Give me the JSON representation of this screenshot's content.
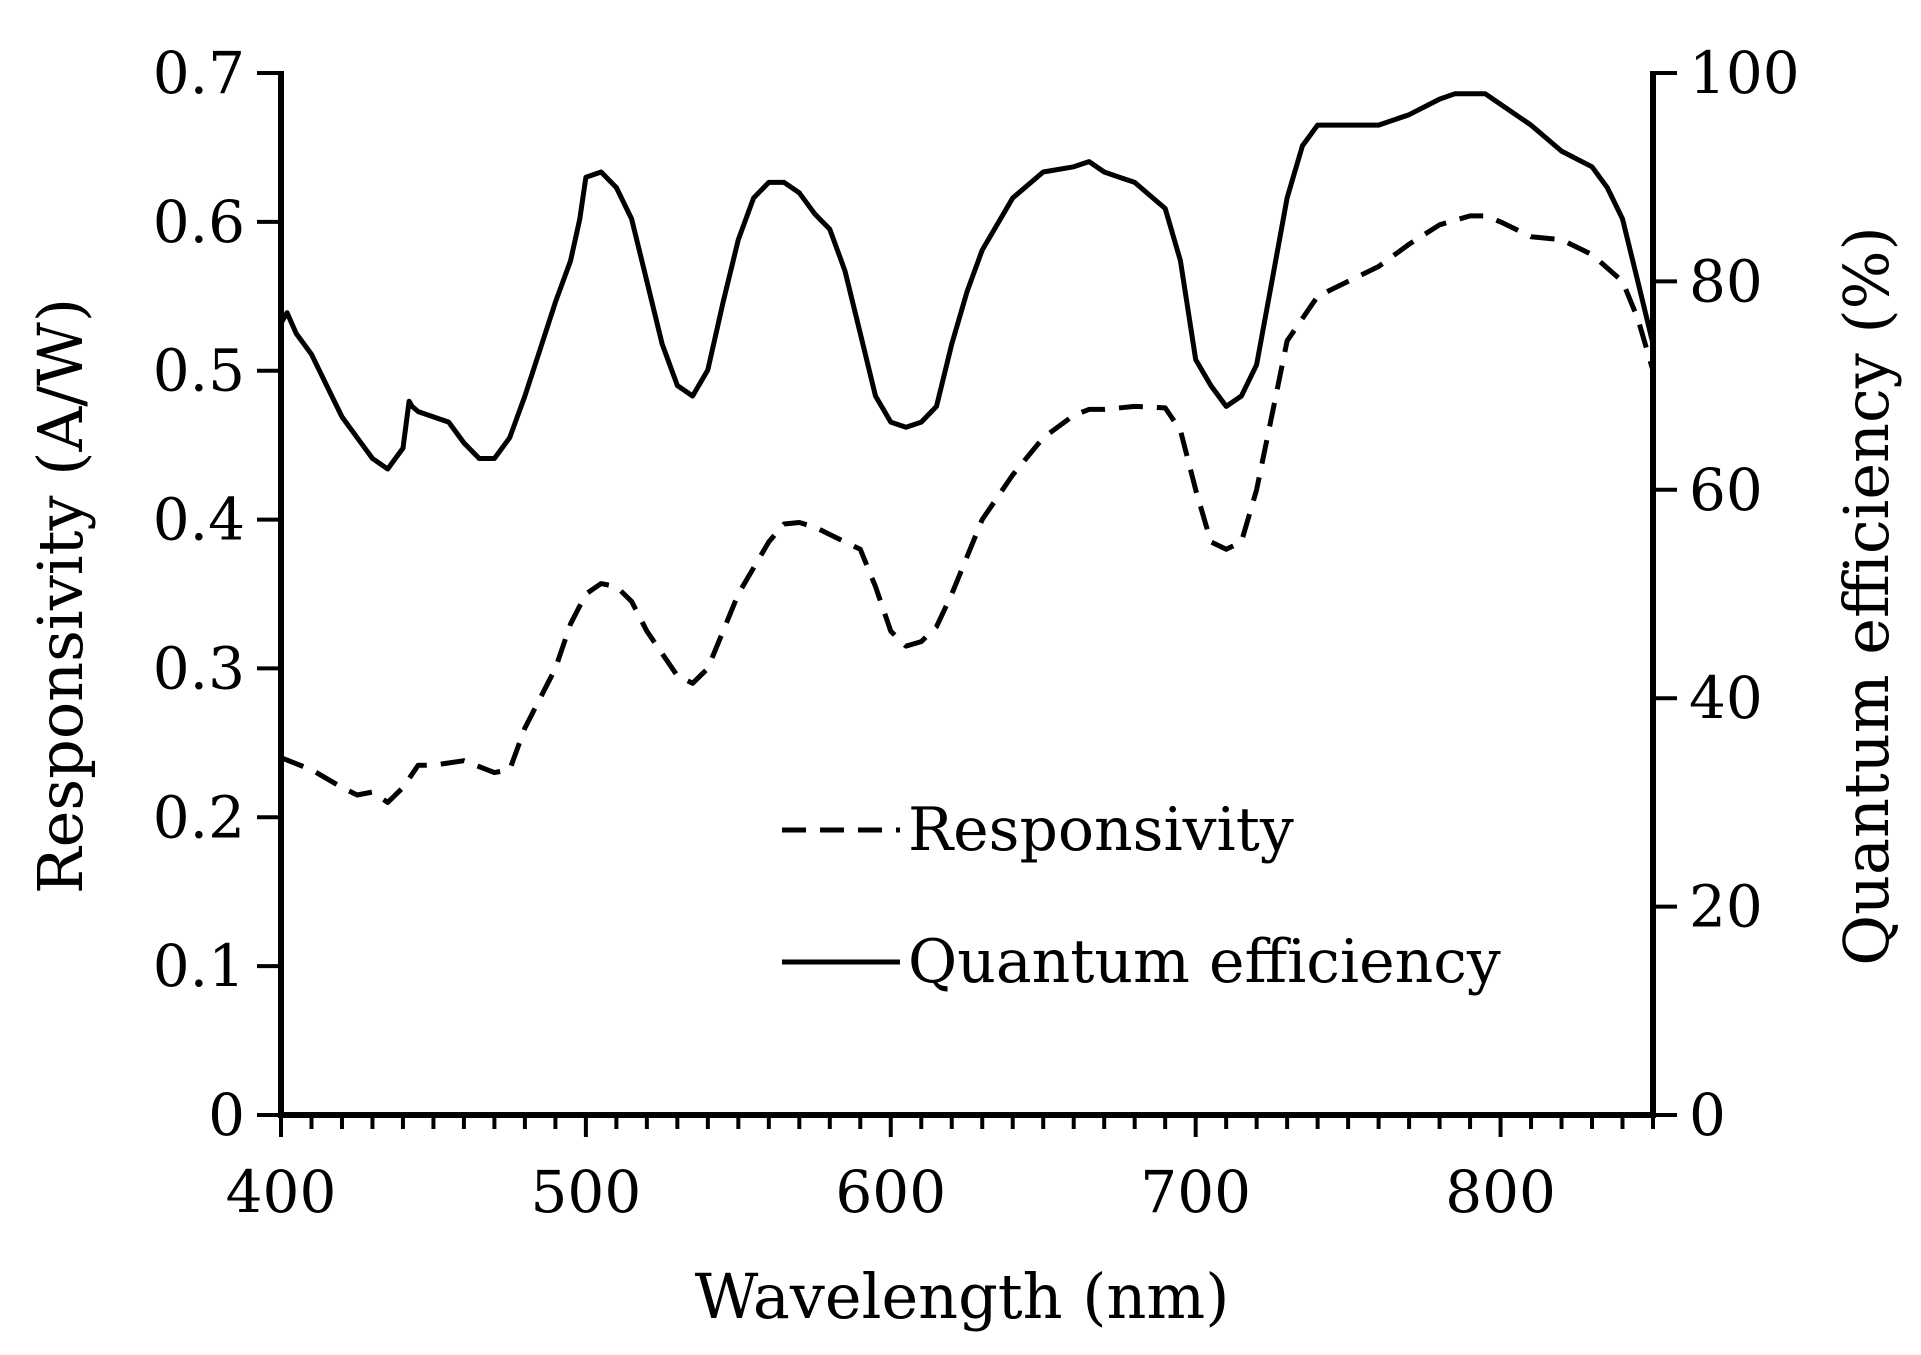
{
  "chart_data": {
    "type": "line",
    "title": "",
    "xlabel": "Wavelength  (nm)",
    "ylabel": "Responsivity (A/W)",
    "y2label": "Quantum efficiency (%)",
    "xlim": [
      400,
      850
    ],
    "ylim": [
      0,
      0.7
    ],
    "y2lim": [
      0,
      100
    ],
    "xticks": [
      "400",
      "500",
      "600",
      "700",
      "800"
    ],
    "xtick_values": [
      400,
      500,
      600,
      700,
      800
    ],
    "yticks": [
      "0",
      "0.1",
      "0.2",
      "0.3",
      "0.4",
      "0.5",
      "0.6",
      "0.7"
    ],
    "ytick_values": [
      0,
      0.1,
      0.2,
      0.3,
      0.4,
      0.5,
      0.6,
      0.7
    ],
    "y2ticks": [
      "0",
      "20",
      "40",
      "60",
      "80",
      "100"
    ],
    "y2tick_values": [
      0,
      20,
      40,
      60,
      80,
      100
    ],
    "grid": false,
    "legend_position": "lower-center",
    "series": [
      {
        "name": "Responsivity",
        "axis": "left",
        "style": "dashed",
        "x": [
          400,
          410,
          420,
          425,
          430,
          435,
          440,
          445,
          450,
          460,
          470,
          475,
          480,
          490,
          495,
          500,
          505,
          510,
          515,
          520,
          530,
          535,
          540,
          550,
          560,
          565,
          570,
          575,
          580,
          590,
          595,
          600,
          605,
          610,
          615,
          620,
          630,
          640,
          650,
          660,
          665,
          670,
          680,
          690,
          695,
          700,
          705,
          710,
          715,
          720,
          725,
          730,
          740,
          750,
          760,
          770,
          780,
          790,
          795,
          800,
          810,
          820,
          830,
          840,
          845,
          850
        ],
        "values": [
          0.24,
          0.232,
          0.22,
          0.215,
          0.217,
          0.21,
          0.22,
          0.235,
          0.235,
          0.238,
          0.23,
          0.232,
          0.26,
          0.3,
          0.33,
          0.35,
          0.357,
          0.355,
          0.345,
          0.325,
          0.295,
          0.29,
          0.3,
          0.35,
          0.385,
          0.397,
          0.398,
          0.395,
          0.39,
          0.38,
          0.355,
          0.325,
          0.315,
          0.318,
          0.328,
          0.35,
          0.4,
          0.43,
          0.455,
          0.47,
          0.474,
          0.474,
          0.476,
          0.475,
          0.46,
          0.42,
          0.385,
          0.38,
          0.385,
          0.42,
          0.47,
          0.52,
          0.55,
          0.56,
          0.57,
          0.585,
          0.598,
          0.604,
          0.604,
          0.6,
          0.59,
          0.588,
          0.578,
          0.56,
          0.535,
          0.5
        ]
      },
      {
        "name": "Quantum efficiency",
        "axis": "right",
        "style": "solid",
        "x": [
          400,
          402,
          405,
          410,
          415,
          420,
          425,
          430,
          435,
          440,
          442,
          443,
          445,
          450,
          455,
          460,
          465,
          470,
          475,
          480,
          485,
          490,
          495,
          498,
          500,
          505,
          510,
          515,
          520,
          525,
          530,
          535,
          540,
          545,
          550,
          555,
          560,
          565,
          570,
          575,
          580,
          585,
          590,
          595,
          600,
          605,
          610,
          615,
          620,
          625,
          630,
          640,
          650,
          660,
          665,
          670,
          675,
          680,
          690,
          695,
          700,
          705,
          710,
          715,
          720,
          725,
          730,
          735,
          740,
          745,
          750,
          760,
          770,
          780,
          785,
          790,
          795,
          800,
          810,
          820,
          830,
          835,
          840,
          845,
          850
        ],
        "values": [
          76,
          77,
          75,
          73,
          70,
          67,
          65,
          63,
          62,
          64,
          68.5,
          68,
          67.5,
          67,
          66.5,
          64.5,
          63,
          63,
          65,
          69,
          73.5,
          78,
          82,
          86,
          90,
          90.5,
          89,
          86,
          80,
          74,
          70,
          69,
          71.5,
          78,
          84,
          88,
          89.5,
          89.5,
          88.5,
          86.5,
          85,
          81,
          75,
          69,
          66.5,
          66,
          66.5,
          68,
          74,
          79,
          83,
          88,
          90.5,
          91,
          91.5,
          90.5,
          90,
          89.5,
          87,
          82,
          72.5,
          70,
          68,
          69,
          72,
          80,
          88,
          93,
          95,
          95,
          95,
          95,
          96,
          97.5,
          98,
          98,
          98,
          97,
          95,
          92.5,
          91,
          89,
          86,
          80,
          74
        ]
      }
    ],
    "legend": [
      {
        "label": "Responsivity",
        "style": "dashed"
      },
      {
        "label": "Quantum efficiency",
        "style": "solid"
      }
    ]
  }
}
